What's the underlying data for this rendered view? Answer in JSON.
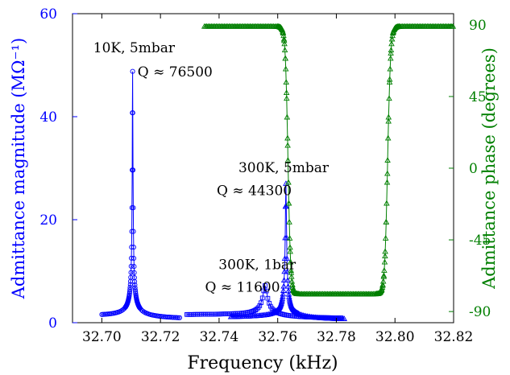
{
  "chart_data": {
    "type": "line",
    "xlabel": "Frequency (kHz)",
    "ylabel_left": "Admittance magnitude (MΩ⁻¹)",
    "ylabel_right": "Admittance phase (degrees)",
    "xlim": [
      32.69,
      32.82
    ],
    "ylim_left": [
      0,
      60
    ],
    "ylim_right": [
      -97,
      97
    ],
    "grid": false,
    "x_ticks": [
      "32.70",
      "32.72",
      "32.74",
      "32.76",
      "32.78",
      "32.80",
      "32.82"
    ],
    "x_tick_values": [
      32.7,
      32.72,
      32.74,
      32.76,
      32.78,
      32.8,
      32.82
    ],
    "y_left_ticks": [
      "0",
      "20",
      "40",
      "60"
    ],
    "y_left_tick_values": [
      0,
      20,
      40,
      60
    ],
    "y_right_ticks": [
      "-90",
      "-45",
      "0",
      "45",
      "90"
    ],
    "y_right_tick_values": [
      -90,
      -45,
      0,
      45,
      90
    ],
    "colors": {
      "magnitude": "#0000ff",
      "phase": "#007f00",
      "axis": "#000000"
    },
    "series": [
      {
        "axis": "left",
        "marker": "circle",
        "color": "#0000ff",
        "resonance": {
          "f0": 32.7105,
          "peak": 48.8,
          "halfwidth": 0.00021,
          "baseline": 0.9,
          "x_range": [
            32.7,
            32.727
          ]
        }
      },
      {
        "axis": "left",
        "marker": "square",
        "color": "#0000ff",
        "resonance": {
          "f0": 32.7557,
          "peak": 7.2,
          "halfwidth": 0.0014,
          "baseline": 1.1,
          "x_range": [
            32.729,
            32.782
          ]
        }
      },
      {
        "axis": "left",
        "marker": "triangle",
        "color": "#0000ff",
        "resonance": {
          "f0": 32.7628,
          "peak": 27.0,
          "halfwidth": 0.00037,
          "baseline": 0.7,
          "x_range": [
            32.744,
            32.783
          ]
        }
      },
      {
        "axis": "right",
        "marker": "triangle",
        "color": "#007f00",
        "phase": {
          "x_range": [
            32.735,
            32.82
          ],
          "high": 89,
          "low": -79,
          "fall_center": 32.7635,
          "fall_width": 0.00045,
          "rise_center": 32.7975,
          "rise_width": 0.0005
        }
      }
    ],
    "annotations": [
      {
        "text": "10K, 5mbar",
        "x": 32.711,
        "y": 52.5
      },
      {
        "text": "Q ≈ 76500",
        "x": 32.725,
        "y": 47.8
      },
      {
        "text": "300K, 5mbar",
        "x": 32.762,
        "y": 29.2
      },
      {
        "text": "Q ≈ 44300",
        "x": 32.752,
        "y": 24.8
      },
      {
        "text": "300K, 1bar",
        "x": 32.753,
        "y": 10.4
      },
      {
        "text": "Q ≈ 11600",
        "x": 32.748,
        "y": 6.0
      }
    ]
  }
}
